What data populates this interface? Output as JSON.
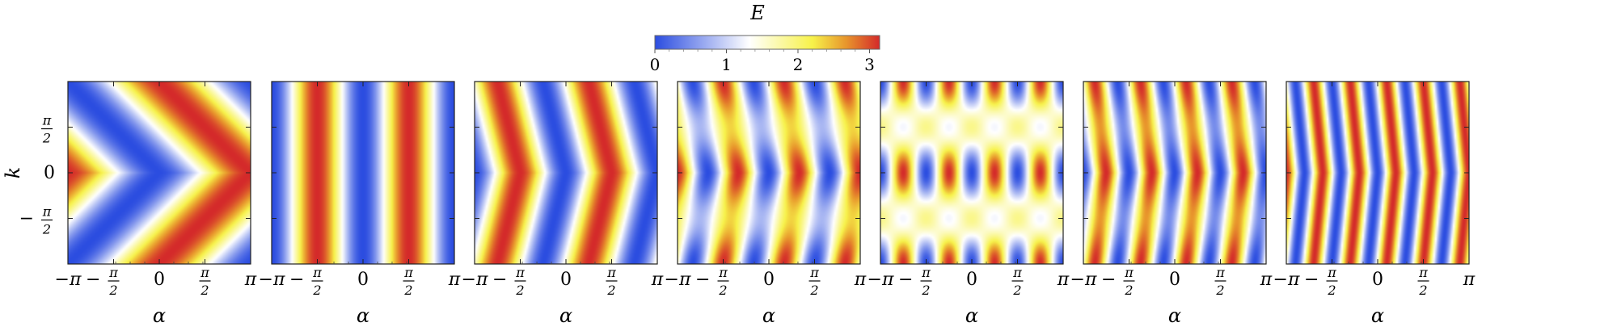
{
  "colorbar": {
    "title": "E",
    "ticks": [
      "0",
      "1",
      "2",
      "3"
    ],
    "tick_values": [
      0,
      1,
      2,
      3
    ],
    "range": [
      0,
      3.14159
    ],
    "colors": [
      "#2b4de0",
      "#ffffff",
      "#f7f24a",
      "#e8962c",
      "#d42a2a"
    ]
  },
  "ylabel": "k",
  "xlabel": "α",
  "x_ticks": [
    {
      "value": -3.14159,
      "sign": "−",
      "num": "π",
      "den": ""
    },
    {
      "value": -1.5708,
      "sign": "−",
      "num": "π",
      "den": "2"
    },
    {
      "value": 0,
      "sign": "",
      "num": "0",
      "den": ""
    },
    {
      "value": 1.5708,
      "sign": "",
      "num": "π",
      "den": "2"
    },
    {
      "value": 3.14159,
      "sign": "",
      "num": "π",
      "den": ""
    }
  ],
  "y_ticks": [
    {
      "value": 1.5708,
      "sign": "",
      "num": "π",
      "den": "2"
    },
    {
      "value": 0,
      "sign": "",
      "num": "0",
      "den": ""
    },
    {
      "value": -1.5708,
      "sign": "−",
      "num": "π",
      "den": "2"
    }
  ],
  "chart_data": [
    {
      "type": "heatmap",
      "panel": 1,
      "x_range": [
        -3.14159,
        3.14159
      ],
      "y_range": [
        -3.14159,
        3.14159
      ],
      "xlabel": "α",
      "ylabel": "k",
      "z_range": [
        0,
        3.14159
      ],
      "pattern": {
        "x_frequency": 1,
        "y_coupling": 0.5,
        "y_modulation": 0
      }
    },
    {
      "type": "heatmap",
      "panel": 2,
      "x_range": [
        -3.14159,
        3.14159
      ],
      "y_range": [
        -3.14159,
        3.14159
      ],
      "xlabel": "α",
      "ylabel": "",
      "z_range": [
        0,
        3.14159
      ],
      "pattern": {
        "x_frequency": 2,
        "y_coupling": 0,
        "y_modulation": 0
      }
    },
    {
      "type": "heatmap",
      "panel": 3,
      "x_range": [
        -3.14159,
        3.14159
      ],
      "y_range": [
        -3.14159,
        3.14159
      ],
      "xlabel": "α",
      "ylabel": "",
      "z_range": [
        0,
        3.14159
      ],
      "pattern": {
        "x_frequency": 2,
        "y_coupling": 0.5,
        "y_modulation": 0
      }
    },
    {
      "type": "heatmap",
      "panel": 4,
      "x_range": [
        -3.14159,
        3.14159
      ],
      "y_range": [
        -3.14159,
        3.14159
      ],
      "xlabel": "α",
      "ylabel": "",
      "z_range": [
        0,
        3.14159
      ],
      "pattern": {
        "x_frequency": 3,
        "y_coupling": 0.5,
        "y_modulation": 0.25
      }
    },
    {
      "type": "heatmap",
      "panel": 5,
      "x_range": [
        -3.14159,
        3.14159
      ],
      "y_range": [
        -3.14159,
        3.14159
      ],
      "xlabel": "α",
      "ylabel": "",
      "z_range": [
        0,
        3.14159
      ],
      "pattern": {
        "x_frequency": 4,
        "y_coupling": 0,
        "y_modulation": 0.6
      }
    },
    {
      "type": "heatmap",
      "panel": 6,
      "x_range": [
        -3.14159,
        3.14159
      ],
      "y_range": [
        -3.14159,
        3.14159
      ],
      "xlabel": "α",
      "ylabel": "",
      "z_range": [
        0,
        3.14159
      ],
      "pattern": {
        "x_frequency": 4,
        "y_coupling": 0.5,
        "y_modulation": 0.15
      }
    },
    {
      "type": "heatmap",
      "panel": 7,
      "x_range": [
        -3.14159,
        3.14159
      ],
      "y_range": [
        -3.14159,
        3.14159
      ],
      "xlabel": "α",
      "ylabel": "",
      "z_range": [
        0,
        3.14159
      ],
      "pattern": {
        "x_frequency": 5,
        "y_coupling": 0.5,
        "y_modulation": 0
      }
    }
  ]
}
